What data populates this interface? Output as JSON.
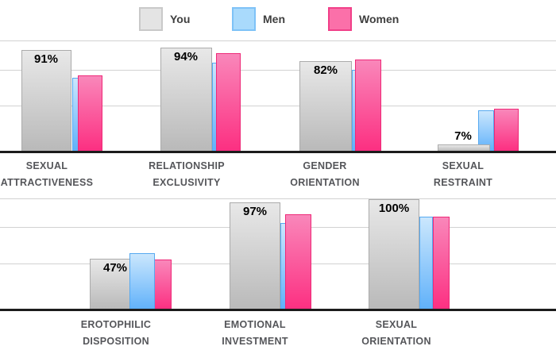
{
  "legend": {
    "items": [
      {
        "id": "you",
        "label": "You",
        "fill": "#e4e4e4",
        "border": "#c9c9c9"
      },
      {
        "id": "men",
        "label": "Men",
        "fill": "#a9dafc",
        "border": "#7ec2f7"
      },
      {
        "id": "women",
        "label": "Women",
        "fill": "#fb70a9",
        "border": "#f13f88"
      }
    ]
  },
  "chart_data": {
    "type": "bar",
    "unit": "percent",
    "title": "",
    "xlabel": "",
    "ylabel": "",
    "ylim": [
      0,
      100
    ],
    "grid": true,
    "legend_position": "top",
    "series_names": [
      "You",
      "Men",
      "Women"
    ],
    "categories": [
      {
        "slug": "sexual-attractiveness",
        "label_lines": [
          "SEXUAL",
          "ATTRACTIVENESS"
        ],
        "you": 91,
        "men": 66,
        "women": 69,
        "you_label": "91%"
      },
      {
        "slug": "relationship-exclusivity",
        "label_lines": [
          "RELATIONSHIP",
          "EXCLUSIVITY"
        ],
        "you": 94,
        "men": 80,
        "women": 89,
        "you_label": "94%"
      },
      {
        "slug": "gender-orientation",
        "label_lines": [
          "GENDER",
          "ORIENTATION"
        ],
        "you": 82,
        "men": 74,
        "women": 83,
        "you_label": "82%"
      },
      {
        "slug": "sexual-restraint",
        "label_lines": [
          "SEXUAL",
          "RESTRAINT"
        ],
        "you": 7,
        "men": 37,
        "women": 39,
        "you_label": "7%"
      },
      {
        "slug": "erotophilic-disposition",
        "label_lines": [
          "EROTOPHILIC",
          "DISPOSITION"
        ],
        "you": 47,
        "men": 51,
        "women": 46,
        "you_label": "47%"
      },
      {
        "slug": "emotional-investment",
        "label_lines": [
          "EMOTIONAL",
          "INVESTMENT"
        ],
        "you": 97,
        "men": 79,
        "women": 86,
        "you_label": "97%"
      },
      {
        "slug": "sexual-orientation",
        "label_lines": [
          "SEXUAL",
          "ORIENTATION"
        ],
        "you": 100,
        "men": 84,
        "women": 84,
        "you_label": "100%"
      }
    ],
    "render": {
      "rows": [
        {
          "gridlines": [
            51,
            88,
            133
          ],
          "baseline_y": 190,
          "bar_bottom": 191,
          "label_top": 199
        },
        {
          "gridlines": [
            250,
            286,
            332
          ],
          "baseline_y": 389,
          "bar_bottom": 391,
          "label_top": 399
        }
      ],
      "groups": [
        {
          "row": 0,
          "label_cx": 59,
          "value_pos": [
            58,
            66
          ],
          "you_bar": [
            27,
            63,
            63,
            1
          ],
          "men_bar": [
            91,
            19,
            98,
            2
          ],
          "women_bar": [
            98,
            31,
            95,
            3
          ]
        },
        {
          "row": 0,
          "label_cx": 235,
          "value_pos": [
            234,
            63
          ],
          "you_bar": [
            202,
            65,
            60,
            1
          ],
          "men_bar": [
            267,
            18,
            79,
            2
          ],
          "women_bar": [
            272,
            31,
            67,
            3
          ]
        },
        {
          "row": 0,
          "label_cx": 409,
          "value_pos": [
            410,
            80
          ],
          "you_bar": [
            377,
            66,
            77,
            1
          ],
          "men_bar": [
            443,
            17,
            88,
            2
          ],
          "women_bar": [
            447,
            33,
            75,
            3
          ]
        },
        {
          "row": 0,
          "label_cx": 583,
          "value_pos": [
            583,
            163
          ],
          "you_bar": [
            551,
            66,
            182,
            3
          ],
          "men_bar": [
            602,
            20,
            139,
            1
          ],
          "women_bar": [
            622,
            31,
            137,
            2
          ]
        },
        {
          "row": 1,
          "label_cx": 146,
          "value_pos": [
            145,
            329
          ],
          "you_bar": [
            113,
            65,
            326,
            1
          ],
          "men_bar": [
            163,
            32,
            319,
            3
          ],
          "women_bar": [
            185,
            31,
            327,
            2
          ]
        },
        {
          "row": 1,
          "label_cx": 321,
          "value_pos": [
            321,
            258
          ],
          "you_bar": [
            289,
            64,
            255,
            1
          ],
          "men_bar": [
            353,
            18,
            281,
            2
          ],
          "women_bar": [
            359,
            33,
            270,
            3
          ]
        },
        {
          "row": 1,
          "label_cx": 499,
          "value_pos": [
            496,
            254
          ],
          "you_bar": [
            464,
            64,
            251,
            1
          ],
          "men_bar": [
            528,
            17,
            273,
            2
          ],
          "women_bar": [
            545,
            21,
            273,
            3
          ]
        }
      ]
    }
  },
  "colors": {
    "background": "#ffffff",
    "gridline": "#d2d2d2",
    "baseline": "#1c1c1c",
    "category_label": "#55565a",
    "value_label": "#000000",
    "you_top": "#e8e8e8",
    "you_bottom": "#b9b9b9",
    "you_border": "#ababab",
    "men_top": "#cbe7fd",
    "men_bottom": "#60b1fa",
    "men_border": "#56a9f0",
    "women_top": "#f987ba",
    "women_bottom": "#fc2f81",
    "women_border": "#ee2a78"
  }
}
